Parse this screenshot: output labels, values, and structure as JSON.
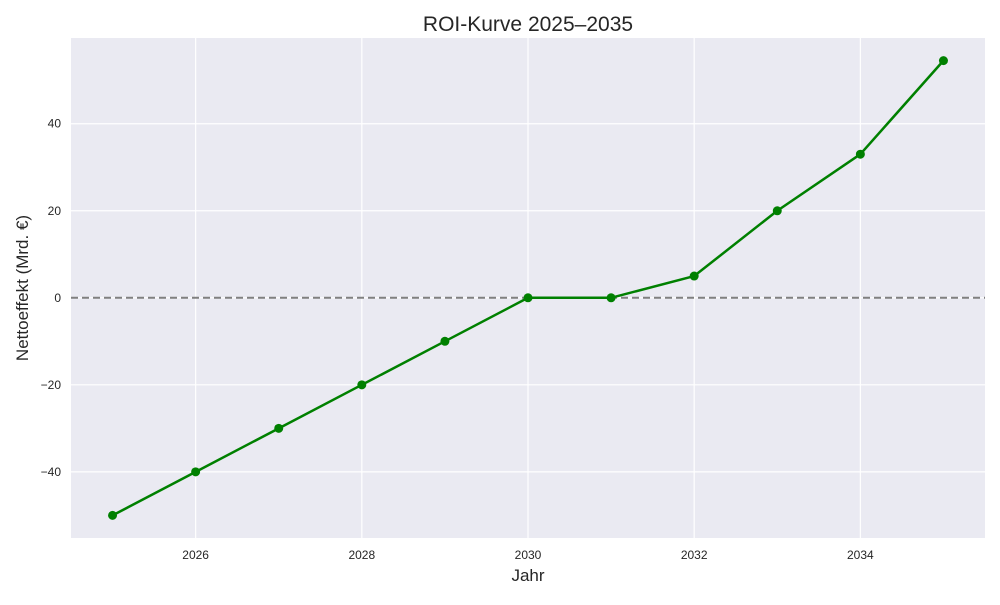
{
  "chart_data": {
    "type": "line",
    "title": "ROI-Kurve 2025–2035",
    "xlabel": "Jahr",
    "ylabel": "Nettoeffekt (Mrd. €)",
    "x": [
      2025,
      2026,
      2027,
      2028,
      2029,
      2030,
      2031,
      2032,
      2033,
      2034,
      2035
    ],
    "series": [
      {
        "values": [
          -50,
          -40,
          -30,
          -20,
          -10,
          0,
          0,
          5,
          20,
          33,
          54.5
        ],
        "color": "#008000",
        "marker": "circle"
      }
    ],
    "xlim": [
      2024.5,
      2035.5
    ],
    "ylim": [
      -55.2,
      59.7
    ],
    "xticks": [
      2026,
      2028,
      2030,
      2032,
      2034
    ],
    "yticks": [
      -40,
      -20,
      0,
      20,
      40
    ],
    "xtick_labels": [
      "2026",
      "2028",
      "2030",
      "2032",
      "2034"
    ],
    "ytick_labels": [
      "−40",
      "−20",
      "0",
      "20",
      "40"
    ],
    "reference_line": {
      "y": 0,
      "style": "dashed",
      "color": "#808080"
    },
    "grid": true,
    "background": "#eaeaf2",
    "grid_color": "#ffffff"
  }
}
